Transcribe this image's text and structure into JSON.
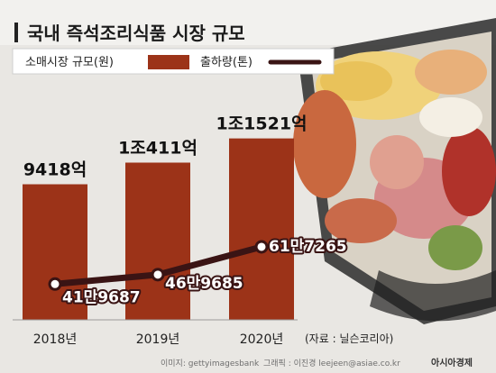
{
  "chart_data": {
    "type": "bar",
    "title": "국내 즉석조리식품 시장 규모",
    "categories": [
      "2018년",
      "2019년",
      "2020년"
    ],
    "series": [
      {
        "name": "소매시장 규모(원)",
        "kind": "bar",
        "values": [
          9418,
          10411,
          11521
        ],
        "value_unit": "억원",
        "labels": [
          "9418억",
          "1조411억",
          "1조1521억"
        ],
        "color": "#9c3318"
      },
      {
        "name": "출하량(톤)",
        "kind": "line",
        "values": [
          419687,
          469685,
          617265
        ],
        "labels": [
          "41만9687",
          "46만9685",
          "61만7265"
        ],
        "color": "#3a1414"
      }
    ],
    "source_note": "(자료 : 닐슨코리아)"
  },
  "credits": {
    "image_credit": "이미지: gettyimagesbank",
    "graphic_credit": "그래픽 : 이진경 leejeen@asiae.co.kr",
    "publisher": "아시아경제"
  }
}
